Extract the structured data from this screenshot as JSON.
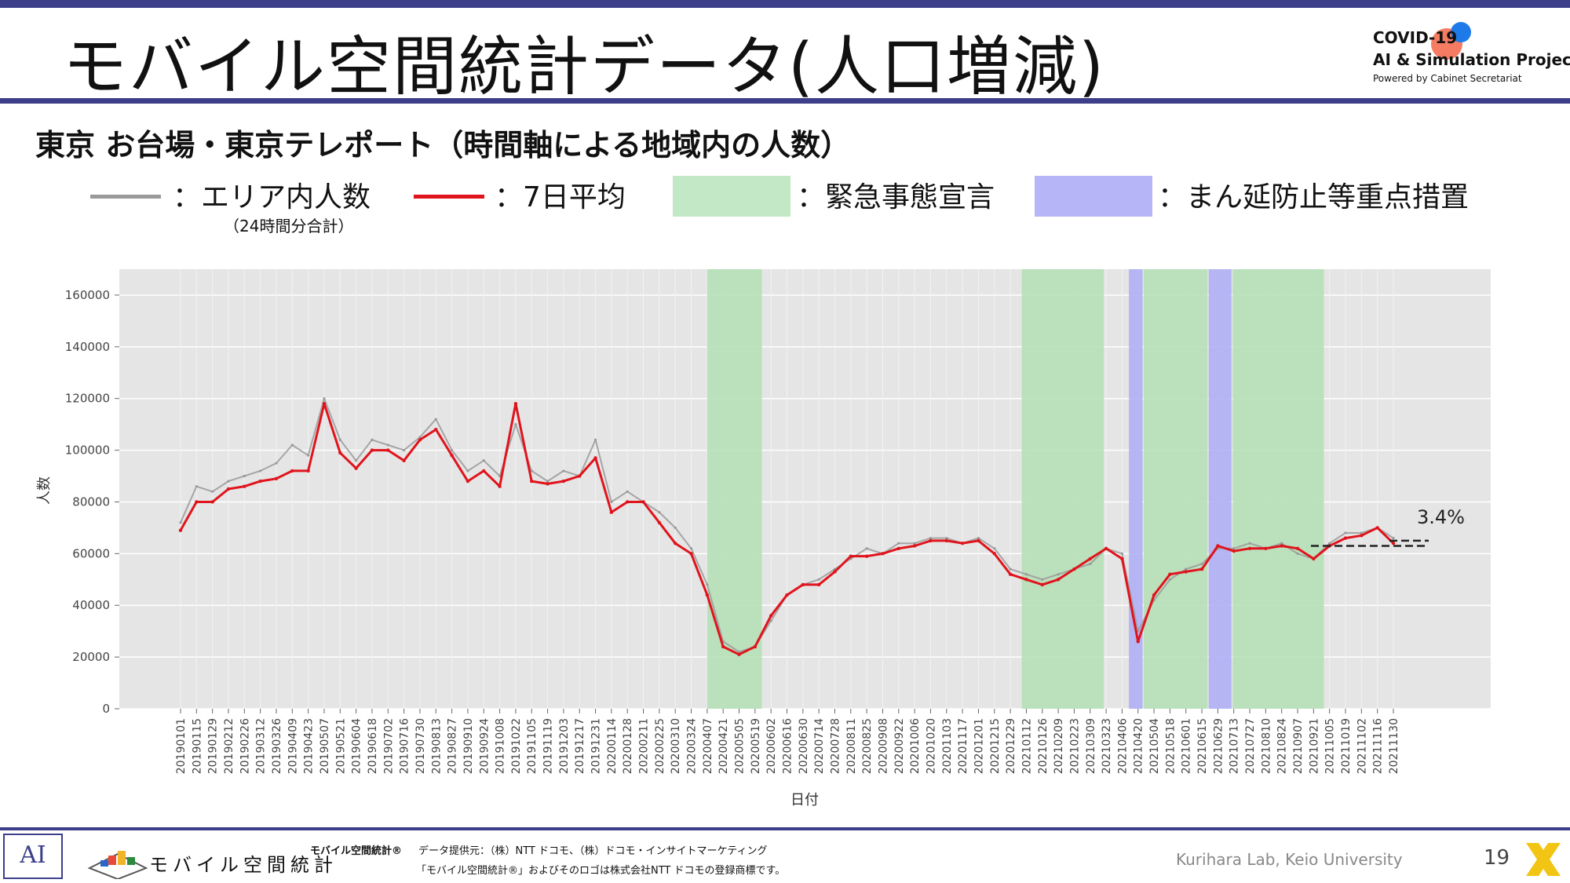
{
  "slide": {
    "title": "モバイル空間統計データ(人口増減)",
    "subtitle": "東京 お台場・東京テレポート（時間軸による地域内の人数）",
    "page_number": "19"
  },
  "logo": {
    "line1": "COVID-19",
    "line2": "AI & Simulation Project",
    "line3": "Powered by Cabinet Secretariat"
  },
  "legend": {
    "area_count": "：エリア内人数",
    "area_count_note": "（24時間分合計）",
    "avg7": "：7日平均",
    "emergency": "：緊急事態宣言",
    "priority": "：まん延防止等重点措置"
  },
  "colors": {
    "raw_line": "#9a9a9a",
    "avg_line": "#e0141c",
    "emergency_fill": "#b7e0b9",
    "priority_fill": "#b1b1f5",
    "plot_bg": "#e5e5e5",
    "accent": "#3d3f8a"
  },
  "footer": {
    "ai_mark": "AI",
    "mobile_logo_text": "モバイル空間統計",
    "mobile_small": "モバイル空間統計®",
    "credit1": "データ提供元：（株）NTT ドコモ、（株）ドコモ・インサイトマーケティング",
    "credit2": "「モバイル空間統計®」およびそのロゴは株式会社NTT ドコモの登録商標です。",
    "lab": "Kurihara Lab, Keio University"
  },
  "chart_data": {
    "type": "line",
    "title": "",
    "xlabel": "日付",
    "ylabel": "人数",
    "ylim": [
      0,
      170000
    ],
    "yticks": [
      0,
      20000,
      40000,
      60000,
      80000,
      100000,
      120000,
      140000,
      160000
    ],
    "grid": true,
    "x_ticks": [
      "20190101",
      "20190115",
      "20190129",
      "20190212",
      "20190226",
      "20190312",
      "20190326",
      "20190409",
      "20190423",
      "20190507",
      "20190521",
      "20190604",
      "20190618",
      "20190702",
      "20190716",
      "20190730",
      "20190813",
      "20190827",
      "20190910",
      "20190924",
      "20191008",
      "20191022",
      "20191105",
      "20191119",
      "20191203",
      "20191217",
      "20191231",
      "20200114",
      "20200128",
      "20200211",
      "20200225",
      "20200310",
      "20200324",
      "20200407",
      "20200421",
      "20200505",
      "20200519",
      "20200602",
      "20200616",
      "20200630",
      "20200714",
      "20200728",
      "20200811",
      "20200825",
      "20200908",
      "20200922",
      "20201006",
      "20201020",
      "20201103",
      "20201117",
      "20201201",
      "20201215",
      "20201229",
      "20210112",
      "20210126",
      "20210209",
      "20210223",
      "20210309",
      "20210323",
      "20210406",
      "20210420",
      "20210504",
      "20210518",
      "20210601",
      "20210615",
      "20210629",
      "20210713",
      "20210727",
      "20210810",
      "20210824",
      "20210907",
      "20210921",
      "20211005",
      "20211019",
      "20211102",
      "20211116",
      "20211130"
    ],
    "series": [
      {
        "name": "エリア内人数",
        "x": [
          "20190101",
          "20190115",
          "20190129",
          "20190212",
          "20190226",
          "20190312",
          "20190326",
          "20190409",
          "20190423",
          "20190507",
          "20190521",
          "20190604",
          "20190618",
          "20190702",
          "20190716",
          "20190730",
          "20190813",
          "20190827",
          "20190910",
          "20190924",
          "20191008",
          "20191022",
          "20191105",
          "20191119",
          "20191203",
          "20191217",
          "20191231",
          "20200114",
          "20200128",
          "20200211",
          "20200225",
          "20200310",
          "20200324",
          "20200407",
          "20200421",
          "20200505",
          "20200519",
          "20200602",
          "20200616",
          "20200630",
          "20200714",
          "20200728",
          "20200811",
          "20200825",
          "20200908",
          "20200922",
          "20201006",
          "20201020",
          "20201103",
          "20201117",
          "20201201",
          "20201215",
          "20201229",
          "20210112",
          "20210126",
          "20210209",
          "20210223",
          "20210309",
          "20210323",
          "20210406",
          "20210420",
          "20210504",
          "20210518",
          "20210601",
          "20210615",
          "20210629",
          "20210713",
          "20210727",
          "20210810",
          "20210824",
          "20210907",
          "20210921",
          "20211005",
          "20211019",
          "20211102",
          "20211116",
          "20211130"
        ],
        "values": [
          72000,
          86000,
          84000,
          88000,
          90000,
          92000,
          95000,
          102000,
          98000,
          120000,
          104000,
          96000,
          104000,
          102000,
          100000,
          105000,
          112000,
          100000,
          92000,
          96000,
          90000,
          110000,
          92000,
          88000,
          92000,
          90000,
          104000,
          80000,
          84000,
          80000,
          76000,
          70000,
          62000,
          48000,
          26000,
          22000,
          24000,
          34000,
          44000,
          48000,
          50000,
          54000,
          58000,
          62000,
          60000,
          64000,
          64000,
          66000,
          66000,
          64000,
          66000,
          62000,
          54000,
          52000,
          50000,
          52000,
          54000,
          56000,
          62000,
          60000,
          30000,
          42000,
          50000,
          54000,
          56000,
          62000,
          62000,
          64000,
          62000,
          64000,
          60000,
          58000,
          64000,
          68000,
          68000,
          70000,
          66000
        ]
      },
      {
        "name": "7日平均",
        "x": [
          "20190101",
          "20190115",
          "20190129",
          "20190212",
          "20190226",
          "20190312",
          "20190326",
          "20190409",
          "20190423",
          "20190507",
          "20190521",
          "20190604",
          "20190618",
          "20190702",
          "20190716",
          "20190730",
          "20190813",
          "20190827",
          "20190910",
          "20190924",
          "20191008",
          "20191022",
          "20191105",
          "20191119",
          "20191203",
          "20191217",
          "20191231",
          "20200114",
          "20200128",
          "20200211",
          "20200225",
          "20200310",
          "20200324",
          "20200407",
          "20200421",
          "20200505",
          "20200519",
          "20200602",
          "20200616",
          "20200630",
          "20200714",
          "20200728",
          "20200811",
          "20200825",
          "20200908",
          "20200922",
          "20201006",
          "20201020",
          "20201103",
          "20201117",
          "20201201",
          "20201215",
          "20201229",
          "20210112",
          "20210126",
          "20210209",
          "20210223",
          "20210309",
          "20210323",
          "20210406",
          "20210420",
          "20210504",
          "20210518",
          "20210601",
          "20210615",
          "20210629",
          "20210713",
          "20210727",
          "20210810",
          "20210824",
          "20210907",
          "20210921",
          "20211005",
          "20211019",
          "20211102",
          "20211116",
          "20211130"
        ],
        "values": [
          69000,
          80000,
          80000,
          85000,
          86000,
          88000,
          89000,
          92000,
          92000,
          118000,
          99000,
          93000,
          100000,
          100000,
          96000,
          104000,
          108000,
          98000,
          88000,
          92000,
          86000,
          118000,
          88000,
          87000,
          88000,
          90000,
          97000,
          76000,
          80000,
          80000,
          72000,
          64000,
          60000,
          44000,
          24000,
          21000,
          24000,
          36000,
          44000,
          48000,
          48000,
          53000,
          59000,
          59000,
          60000,
          62000,
          63000,
          65000,
          65000,
          64000,
          65000,
          60000,
          52000,
          50000,
          48000,
          50000,
          54000,
          58000,
          62000,
          58000,
          26000,
          44000,
          52000,
          53000,
          54000,
          63000,
          61000,
          62000,
          62000,
          63000,
          62000,
          58000,
          63000,
          66000,
          67000,
          70000,
          64000
        ]
      }
    ],
    "shaded_periods": [
      {
        "label": "緊急事態宣言",
        "start": "20200407",
        "end": "20200525"
      },
      {
        "label": "緊急事態宣言",
        "start": "20210108",
        "end": "20210321"
      },
      {
        "label": "まん延防止等重点措置",
        "start": "20210412",
        "end": "20210424"
      },
      {
        "label": "緊急事態宣言",
        "start": "20210425",
        "end": "20210620"
      },
      {
        "label": "まん延防止等重点措置",
        "start": "20210621",
        "end": "20210711"
      },
      {
        "label": "緊急事態宣言",
        "start": "20210712",
        "end": "20210930"
      }
    ],
    "annotation": {
      "text": "3.4%",
      "baseline": 63000,
      "latest": 65000
    }
  }
}
